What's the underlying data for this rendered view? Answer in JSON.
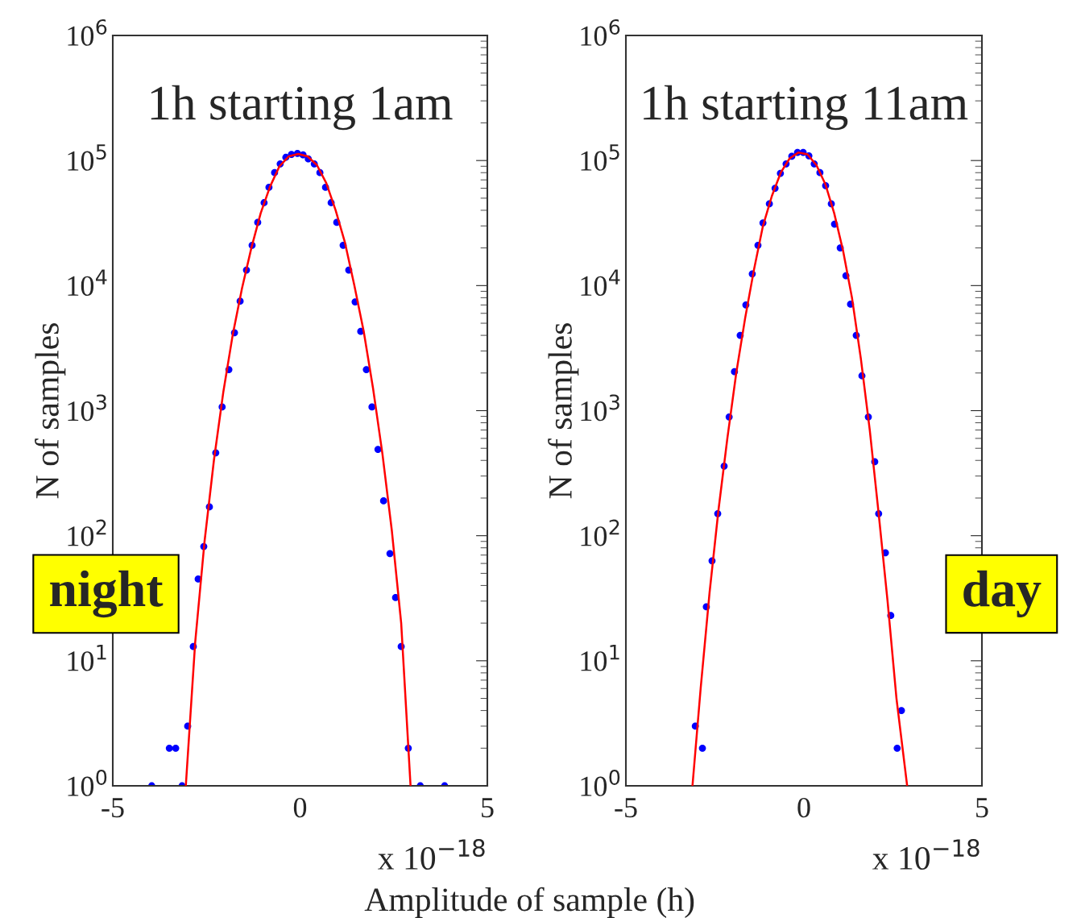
{
  "chart_data": [
    {
      "type": "scatter",
      "title": "1h starting 1am",
      "ylabel": "N of samples",
      "log": "y",
      "xlim": [
        -5,
        5
      ],
      "xticks": [
        -5,
        0,
        5
      ],
      "ylim": [
        1,
        1000000
      ],
      "yticks": [
        {
          "value": 1,
          "label": "10$^{0}$"
        },
        {
          "value": 10,
          "label": "10$^{1}$"
        },
        {
          "value": 100,
          "label": "10$^{2}$"
        },
        {
          "value": 1000,
          "label": "10$^{3}$"
        },
        {
          "value": 10000,
          "label": "10$^{4}$"
        },
        {
          "value": 100000,
          "label": "10$^{5}$"
        },
        {
          "value": 1000000,
          "label": "10$^{6}$"
        }
      ],
      "annotations": [
        "x 10$^{−18}$",
        "night"
      ],
      "series": [
        {
          "marker": "circle",
          "color": "#0000ff",
          "x": [
            -3.96,
            -3.49,
            -3.32,
            -3.15,
            -3.0,
            -2.85,
            -2.72,
            -2.57,
            -2.42,
            -2.25,
            -2.08,
            -1.9,
            -1.75,
            -1.6,
            -1.43,
            -1.28,
            -1.13,
            -0.96,
            -0.83,
            -0.68,
            -0.53,
            -0.38,
            -0.23,
            -0.07,
            0.08,
            0.22,
            0.38,
            0.53,
            0.68,
            0.83,
            0.98,
            1.15,
            1.3,
            1.47,
            1.62,
            1.77,
            1.92,
            2.08,
            2.23,
            2.4,
            2.55,
            2.7,
            2.89,
            3.21,
            3.86
          ],
          "values": [
            1,
            2,
            2,
            1,
            3,
            13,
            45,
            82,
            170,
            460,
            1070,
            2130,
            4200,
            7500,
            13300,
            21000,
            32000,
            46000,
            61000,
            80000,
            94000,
            106000,
            112000,
            114000,
            111000,
            103000,
            94000,
            80000,
            61000,
            46000,
            32000,
            21000,
            13300,
            7400,
            4300,
            2130,
            1070,
            490,
            190,
            72,
            32,
            13,
            2,
            1,
            1
          ]
        },
        {
          "type": "line",
          "color": "#ff0000",
          "x": [
            -3.05,
            -2.8,
            -2.55,
            -2.3,
            -2.05,
            -1.8,
            -1.55,
            -1.3,
            -1.05,
            -0.8,
            -0.55,
            -0.3,
            -0.05,
            0.2,
            0.45,
            0.7,
            0.95,
            1.2,
            1.45,
            1.7,
            1.95,
            2.2,
            2.45,
            2.7,
            2.95
          ],
          "values": [
            1,
            14,
            90,
            400,
            1400,
            4000,
            9500,
            20000,
            38000,
            62000,
            90000,
            108000,
            113000,
            108000,
            92000,
            66000,
            40000,
            22000,
            10000,
            4300,
            1500,
            450,
            110,
            20,
            1
          ]
        }
      ]
    },
    {
      "type": "scatter",
      "title": "1h starting 11am",
      "ylabel": "N of samples",
      "xlabel": "Amplitude of sample (h)",
      "log": "y",
      "xlim": [
        -5,
        5
      ],
      "xticks": [
        -5,
        0,
        5
      ],
      "ylim": [
        1,
        1000000
      ],
      "yticks": [
        {
          "value": 1,
          "label": "10$^{0}$"
        },
        {
          "value": 10,
          "label": "10$^{1}$"
        },
        {
          "value": 100,
          "label": "10$^{2}$"
        },
        {
          "value": 1000,
          "label": "10$^{3}$"
        },
        {
          "value": 10000,
          "label": "10$^{4}$"
        },
        {
          "value": 100000,
          "label": "10$^{5}$"
        },
        {
          "value": 1000000,
          "label": "10$^{6}$"
        }
      ],
      "annotations": [
        "x 10$^{−18}$",
        "day"
      ],
      "series": [
        {
          "marker": "circle",
          "color": "#0000ff",
          "x": [
            -3.05,
            -2.85,
            -2.74,
            -2.58,
            -2.42,
            -2.24,
            -2.1,
            -1.95,
            -1.79,
            -1.63,
            -1.45,
            -1.29,
            -1.15,
            -0.97,
            -0.81,
            -0.66,
            -0.5,
            -0.34,
            -0.18,
            -0.02,
            0.14,
            0.29,
            0.45,
            0.61,
            0.77,
            0.86,
            1.02,
            1.18,
            1.31,
            1.47,
            1.63,
            1.81,
            1.99,
            2.1,
            2.29,
            2.44,
            2.62,
            2.74
          ],
          "values": [
            3,
            2,
            27,
            63,
            150,
            360,
            890,
            2050,
            4000,
            7000,
            12400,
            21000,
            31700,
            45000,
            60000,
            79000,
            94000,
            108000,
            116000,
            116000,
            109000,
            94000,
            80000,
            63000,
            45000,
            31000,
            20000,
            12000,
            7100,
            4000,
            1900,
            890,
            390,
            150,
            73,
            23,
            2,
            4
          ]
        },
        {
          "type": "line",
          "color": "#ff0000",
          "x": [
            -3.13,
            -2.9,
            -2.65,
            -2.4,
            -2.15,
            -1.9,
            -1.65,
            -1.4,
            -1.15,
            -0.9,
            -0.65,
            -0.4,
            -0.15,
            0.1,
            0.35,
            0.6,
            0.85,
            1.1,
            1.35,
            1.6,
            1.85,
            2.1,
            2.35,
            2.6,
            2.9
          ],
          "values": [
            1,
            6,
            35,
            160,
            600,
            2000,
            5500,
            13500,
            30000,
            52000,
            80000,
            104000,
            116000,
            112000,
            92000,
            65000,
            38000,
            19000,
            8000,
            2600,
            700,
            150,
            30,
            5,
            1
          ]
        }
      ]
    }
  ]
}
